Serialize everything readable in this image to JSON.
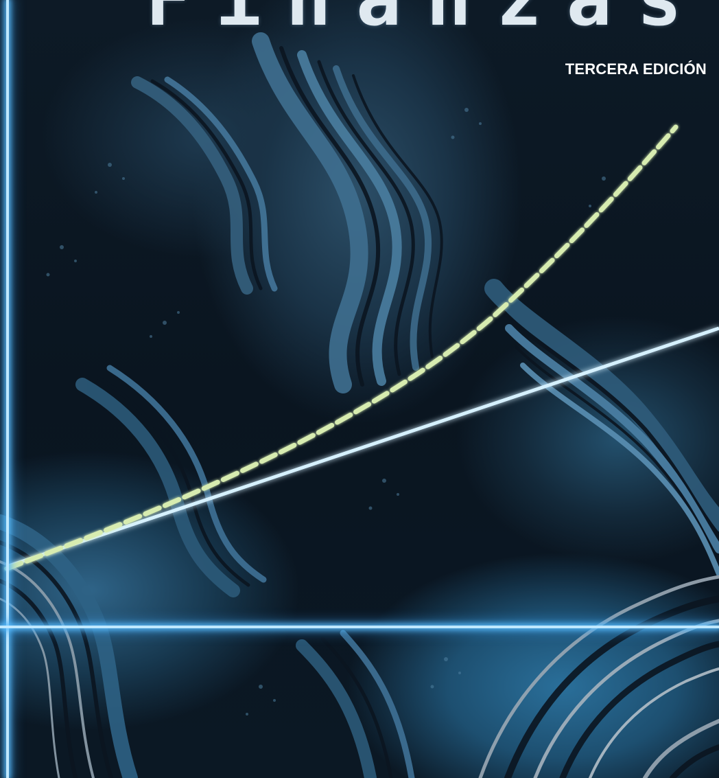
{
  "cover": {
    "title": "Finanzas",
    "edition": "TERCERA EDICIÓN"
  },
  "colors": {
    "background_dark": "#08121c",
    "fractal_blue": "#2f6488",
    "axis_glow": "#bfe8ff",
    "dashed_curve": "#cfe8a8",
    "text": "#ffffff"
  },
  "illustration": {
    "description_icon": "fractal-pattern",
    "line_icon": "straight-line",
    "curve_icon": "dashed-exponential-curve"
  }
}
